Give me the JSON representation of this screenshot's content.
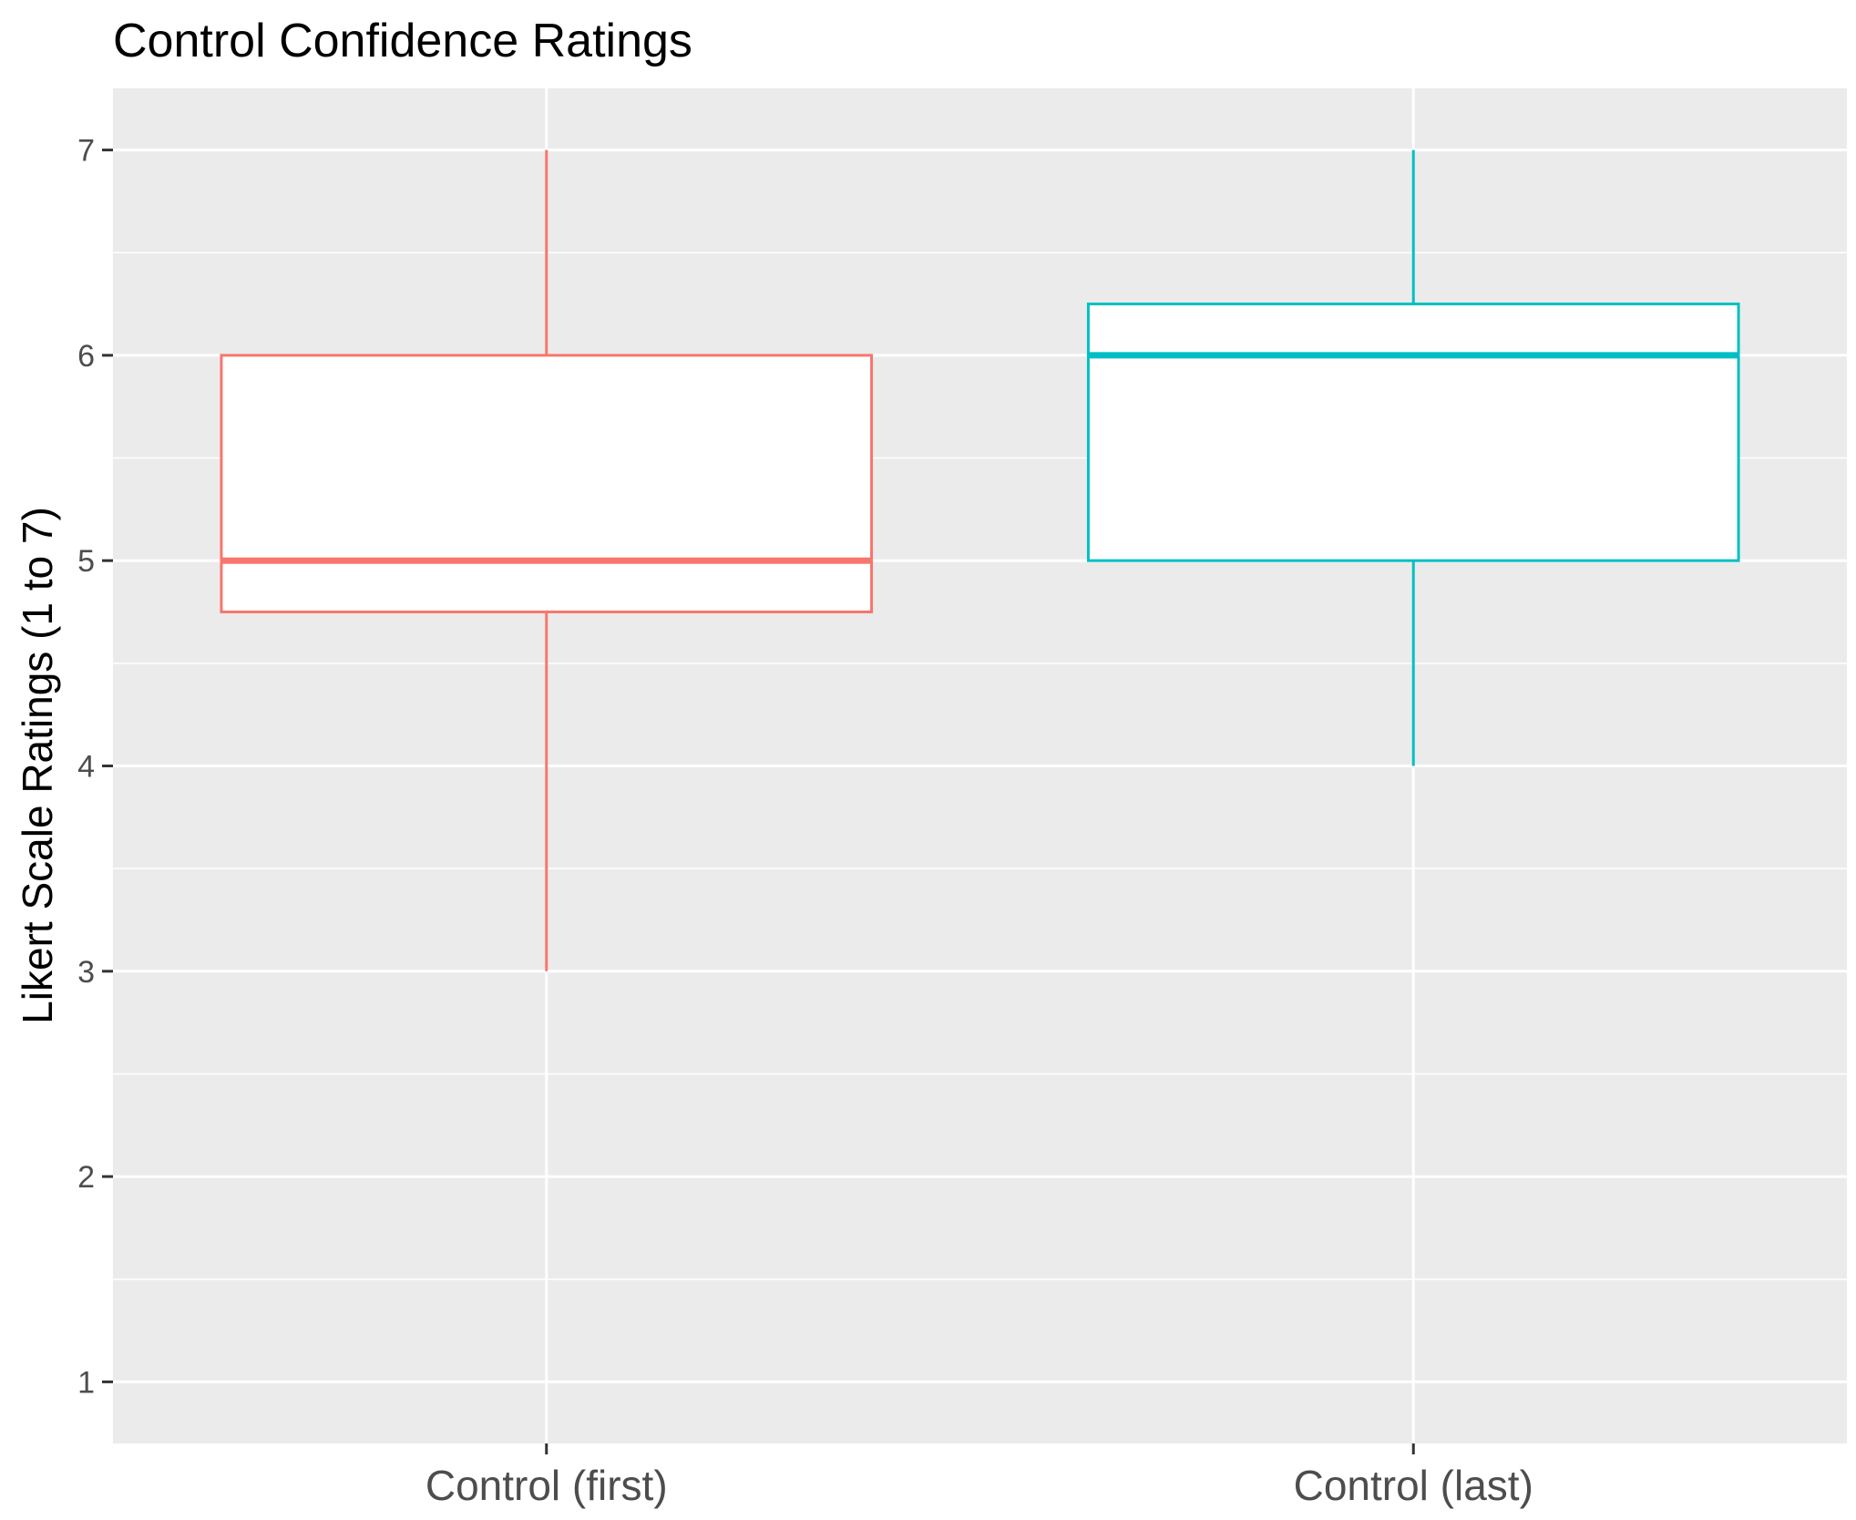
{
  "chart_data": {
    "type": "boxplot",
    "title": "Control Confidence Ratings",
    "xlabel": "",
    "ylabel": "Likert Scale Ratings (1 to 7)",
    "ylim": [
      0.7,
      7.3
    ],
    "y_ticks": [
      1,
      2,
      3,
      4,
      5,
      6,
      7
    ],
    "y_tick_labels": [
      "1",
      "2",
      "3",
      "4",
      "5",
      "6",
      "7"
    ],
    "grid": true,
    "legend": "none",
    "categories": [
      "Control (first)",
      "Control (last)"
    ],
    "boxes": [
      {
        "category": "Control (first)",
        "min": 3,
        "q1": 4.75,
        "median": 5,
        "q3": 6,
        "max": 7,
        "color": "#F8766D"
      },
      {
        "category": "Control (last)",
        "min": 4,
        "q1": 5,
        "median": 6,
        "q3": 6.25,
        "max": 7,
        "color": "#00BFC4"
      }
    ],
    "panel_background": "#EBEBEB",
    "grid_color": "#FFFFFF",
    "box_fill": "#FFFFFF",
    "tick_color": "#333333"
  }
}
